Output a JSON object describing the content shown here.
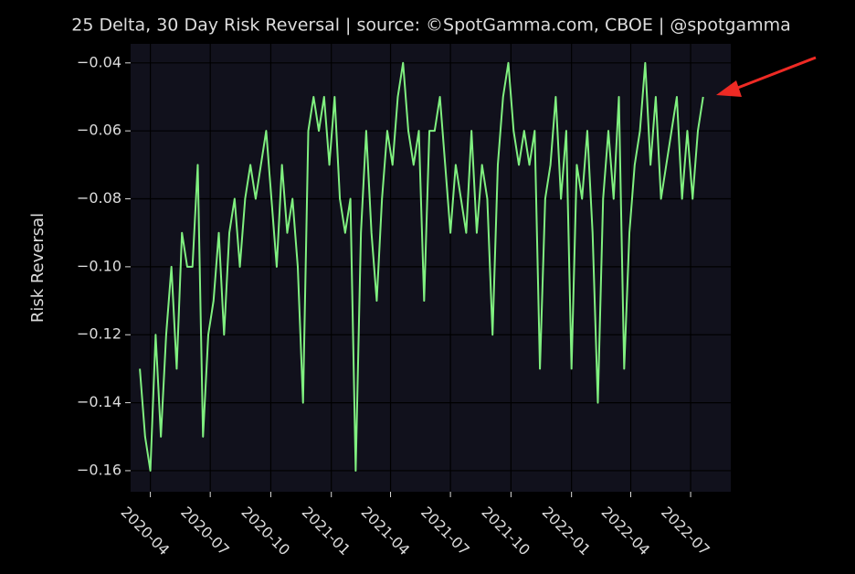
{
  "chart_data": {
    "type": "line",
    "title": "25 Delta, 30 Day Risk Reversal | source: ©SpotGamma.com, CBOE | @spotgamma",
    "y_label": "Risk Reversal",
    "x": [
      "2020-03-16",
      "2020-03-24",
      "2020-04-01",
      "2020-04-09",
      "2020-04-17",
      "2020-04-25",
      "2020-05-03",
      "2020-05-11",
      "2020-05-19",
      "2020-05-27",
      "2020-06-04",
      "2020-06-12",
      "2020-06-20",
      "2020-06-28",
      "2020-07-06",
      "2020-07-14",
      "2020-07-22",
      "2020-07-30",
      "2020-08-07",
      "2020-08-15",
      "2020-08-23",
      "2020-08-31",
      "2020-09-08",
      "2020-09-16",
      "2020-09-24",
      "2020-10-02",
      "2020-10-10",
      "2020-10-18",
      "2020-10-26",
      "2020-11-03",
      "2020-11-11",
      "2020-11-19",
      "2020-11-27",
      "2020-12-05",
      "2020-12-13",
      "2020-12-21",
      "2020-12-29",
      "2021-01-06",
      "2021-01-14",
      "2021-01-22",
      "2021-01-30",
      "2021-02-07",
      "2021-02-15",
      "2021-02-23",
      "2021-03-03",
      "2021-03-11",
      "2021-03-19",
      "2021-03-27",
      "2021-04-04",
      "2021-04-12",
      "2021-04-20",
      "2021-04-28",
      "2021-05-06",
      "2021-05-14",
      "2021-05-22",
      "2021-05-30",
      "2021-06-07",
      "2021-06-15",
      "2021-06-23",
      "2021-07-01",
      "2021-07-09",
      "2021-07-17",
      "2021-07-25",
      "2021-08-02",
      "2021-08-10",
      "2021-08-18",
      "2021-08-26",
      "2021-09-03",
      "2021-09-11",
      "2021-09-19",
      "2021-09-27",
      "2021-10-05",
      "2021-10-13",
      "2021-10-21",
      "2021-10-29",
      "2021-11-06",
      "2021-11-14",
      "2021-11-22",
      "2021-11-30",
      "2021-12-08",
      "2021-12-16",
      "2021-12-24",
      "2022-01-01",
      "2022-01-09",
      "2022-01-17",
      "2022-01-25",
      "2022-02-02",
      "2022-02-10",
      "2022-02-18",
      "2022-02-26",
      "2022-03-06",
      "2022-03-14",
      "2022-03-22",
      "2022-03-30",
      "2022-04-07",
      "2022-04-15",
      "2022-04-23",
      "2022-05-01",
      "2022-05-09",
      "2022-05-17",
      "2022-05-25",
      "2022-06-02",
      "2022-06-10",
      "2022-06-18",
      "2022-06-26",
      "2022-07-04",
      "2022-07-12",
      "2022-07-20"
    ],
    "series": [
      {
        "color": "#80f080",
        "values": [
          -0.13,
          -0.15,
          -0.16,
          -0.12,
          -0.15,
          -0.12,
          -0.1,
          -0.13,
          -0.09,
          -0.1,
          -0.1,
          -0.07,
          -0.15,
          -0.12,
          -0.11,
          -0.09,
          -0.12,
          -0.09,
          -0.08,
          -0.1,
          -0.08,
          -0.07,
          -0.08,
          -0.07,
          -0.06,
          -0.08,
          -0.1,
          -0.07,
          -0.09,
          -0.08,
          -0.1,
          -0.14,
          -0.06,
          -0.05,
          -0.06,
          -0.05,
          -0.07,
          -0.05,
          -0.08,
          -0.09,
          -0.08,
          -0.16,
          -0.09,
          -0.06,
          -0.09,
          -0.11,
          -0.08,
          -0.06,
          -0.07,
          -0.05,
          -0.04,
          -0.06,
          -0.07,
          -0.06,
          -0.11,
          -0.06,
          -0.06,
          -0.05,
          -0.07,
          -0.09,
          -0.07,
          -0.08,
          -0.09,
          -0.06,
          -0.09,
          -0.07,
          -0.08,
          -0.12,
          -0.07,
          -0.05,
          -0.04,
          -0.06,
          -0.07,
          -0.06,
          -0.07,
          -0.06,
          -0.13,
          -0.08,
          -0.07,
          -0.05,
          -0.08,
          -0.06,
          -0.13,
          -0.07,
          -0.08,
          -0.06,
          -0.09,
          -0.14,
          -0.08,
          -0.06,
          -0.08,
          -0.05,
          -0.13,
          -0.09,
          -0.07,
          -0.06,
          -0.04,
          -0.07,
          -0.05,
          -0.08,
          -0.07,
          -0.06,
          -0.05,
          -0.08,
          -0.06,
          -0.08,
          -0.06,
          -0.05
        ]
      }
    ],
    "xlim": [
      "2020-03-02",
      "2022-08-31"
    ],
    "xticks": [
      {
        "value": "2020-04-01",
        "label": "2020-04"
      },
      {
        "value": "2020-07-01",
        "label": "2020-07"
      },
      {
        "value": "2020-10-01",
        "label": "2020-10"
      },
      {
        "value": "2021-01-01",
        "label": "2021-01"
      },
      {
        "value": "2021-04-01",
        "label": "2021-04"
      },
      {
        "value": "2021-07-01",
        "label": "2021-07"
      },
      {
        "value": "2021-10-01",
        "label": "2021-10"
      },
      {
        "value": "2022-01-01",
        "label": "2022-01"
      },
      {
        "value": "2022-04-01",
        "label": "2022-04"
      },
      {
        "value": "2022-07-01",
        "label": "2022-07"
      }
    ],
    "ylim": [
      -0.1662,
      -0.0344
    ],
    "yticks": [
      {
        "value": -0.16,
        "label": "−0.16"
      },
      {
        "value": -0.14,
        "label": "−0.14"
      },
      {
        "value": -0.12,
        "label": "−0.12"
      },
      {
        "value": -0.1,
        "label": "−0.10"
      },
      {
        "value": -0.08,
        "label": "−0.08"
      },
      {
        "value": -0.06,
        "label": "−0.06"
      },
      {
        "value": -0.04,
        "label": "−0.04"
      }
    ],
    "grid": true
  }
}
